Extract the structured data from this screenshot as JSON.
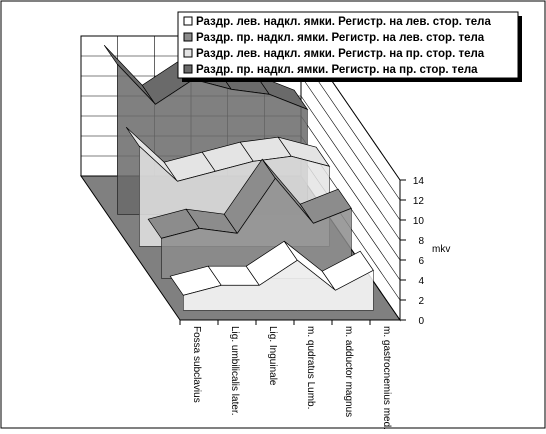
{
  "chart_data": {
    "type": "line3d",
    "y_label": "mkv",
    "categories": [
      "Fossa subclavius",
      "Lig. umbilicalis later.",
      "Lig. Inguinale",
      "m. qudratus Lumb.",
      "m. adductor magnus",
      "m. gastrocnemius med."
    ],
    "series": [
      {
        "name": "Раздр. лев. надкл. ямки. Регистр. на лев. стор. тела",
        "color": "#ffffff",
        "values": [
          1.5,
          2.5,
          2.5,
          5,
          2,
          4
        ]
      },
      {
        "name": "Раздр. пр. надкл. ямки. Регистр. на лев. стор. тела",
        "color": "#8c8c8c",
        "values": [
          4,
          5,
          4.5,
          10,
          5.5,
          7
        ]
      },
      {
        "name": "Раздр. лев. надкл. ямки.  Регистр. на пр. стор. тела",
        "color": "#e4e4e4",
        "values": [
          10,
          6.5,
          7.5,
          8.5,
          9,
          8
        ]
      },
      {
        "name": "Раздр. пр. надкл. ямки. Регистр. на пр. стор. тела",
        "color": "#6a6a6a",
        "values": [
          15,
          11,
          13.5,
          12.5,
          12,
          10.5
        ]
      }
    ],
    "ylim": [
      0,
      14
    ],
    "yticks": [
      0,
      2,
      4,
      6,
      8,
      10,
      12,
      14
    ],
    "grid": true
  }
}
